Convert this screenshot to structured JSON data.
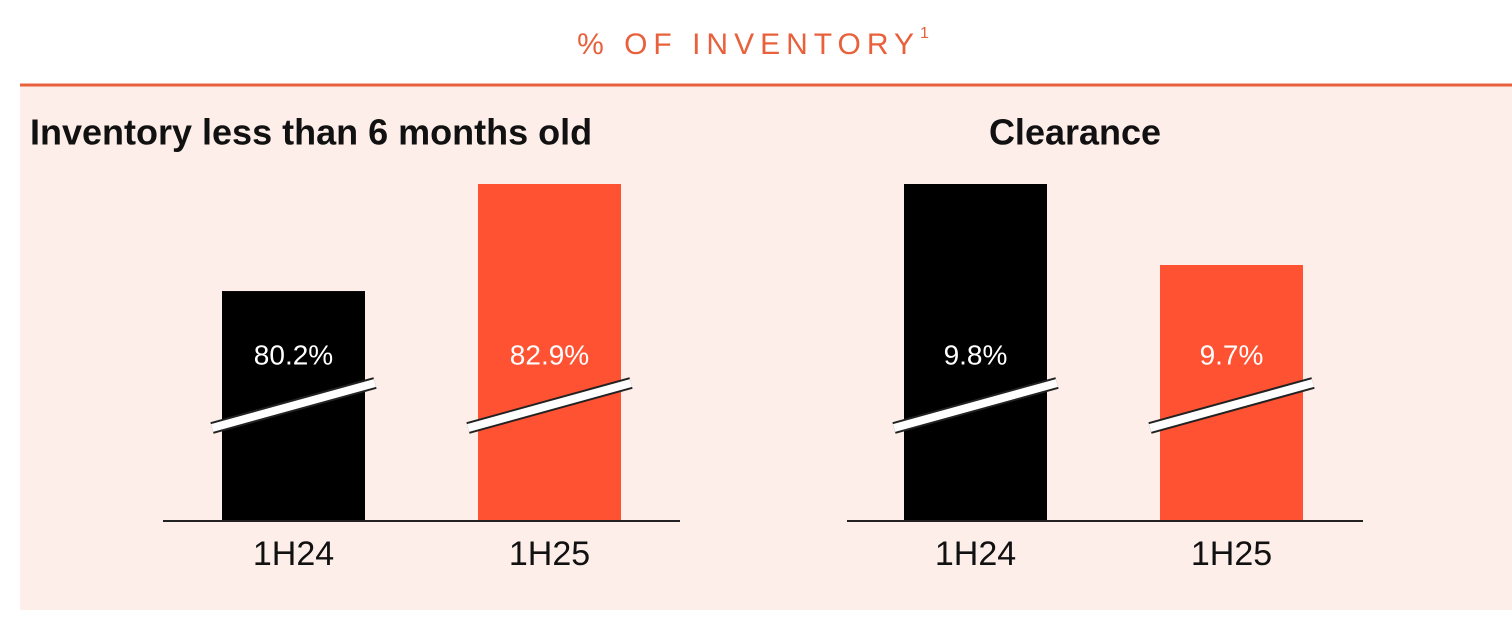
{
  "heading": "% OF INVENTORY",
  "heading_note": "1",
  "chart_data": [
    {
      "type": "bar",
      "title": "Inventory less than 6 months old",
      "categories": [
        "1H24",
        "1H25"
      ],
      "values": [
        80.2,
        82.9
      ],
      "value_labels": [
        "80.2%",
        "82.9%"
      ],
      "colors": [
        "#000000",
        "#ff5233"
      ],
      "ylim": [
        74.4,
        82.9
      ],
      "axis_break": true
    },
    {
      "type": "bar",
      "title": "Clearance",
      "categories": [
        "1H24",
        "1H25"
      ],
      "values": [
        9.8,
        9.7
      ],
      "value_labels": [
        "9.8%",
        "9.7%"
      ],
      "colors": [
        "#000000",
        "#ff5233"
      ],
      "ylim": [
        9.384,
        9.8
      ],
      "axis_break": true
    }
  ]
}
